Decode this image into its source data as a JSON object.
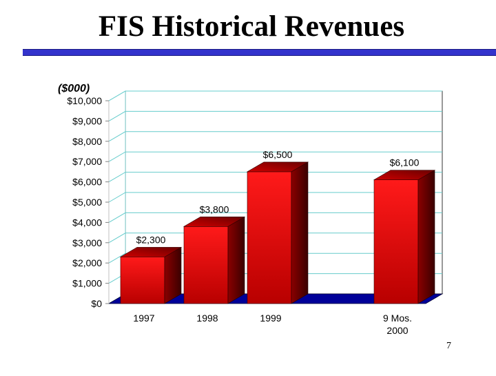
{
  "slide": {
    "title": "FIS Historical Revenues",
    "page_number": "7"
  },
  "colors": {
    "title_rule": "#3333cc",
    "bar_front": "#ff0000",
    "bar_dark": "#8b0000",
    "floor": "#000099",
    "grid": "#66cccc"
  },
  "chart_data": {
    "type": "bar",
    "title": "",
    "unit_label": "($000)",
    "categories": [
      [
        "1997"
      ],
      [
        "1998"
      ],
      [
        "1999"
      ],
      [],
      [
        "9 Mos.",
        "2000"
      ]
    ],
    "values": [
      2300,
      3800,
      6500,
      null,
      6100
    ],
    "value_labels": [
      "$2,300",
      "$3,800",
      "$6,500",
      "",
      "$6,100"
    ],
    "ylim": [
      0,
      10000
    ],
    "y_ticks": [
      0,
      1000,
      2000,
      3000,
      4000,
      5000,
      6000,
      7000,
      8000,
      9000,
      10000
    ],
    "y_tick_labels": [
      "$0",
      "$1,000",
      "$2,000",
      "$3,000",
      "$4,000",
      "$5,000",
      "$6,000",
      "$7,000",
      "$8,000",
      "$9,000",
      "$10,000"
    ],
    "grid": true,
    "style": "3d"
  }
}
